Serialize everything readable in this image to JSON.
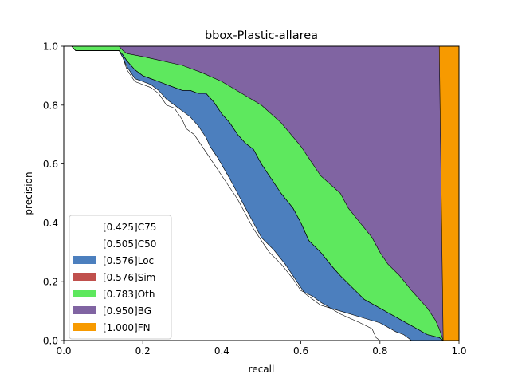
{
  "chart_data": {
    "type": "area",
    "title": "bbox-Plastic-allarea",
    "xlabel": "recall",
    "ylabel": "precision",
    "xlim": [
      0,
      1
    ],
    "ylim": [
      0,
      1
    ],
    "xticks": [
      "0.0",
      "0.2",
      "0.4",
      "0.6",
      "0.8",
      "1.0"
    ],
    "yticks": [
      "0.0",
      "0.2",
      "0.4",
      "0.6",
      "0.8",
      "1.0"
    ],
    "grid": false,
    "legend_position": "lower-left",
    "series": [
      {
        "name": "[0.425]C75",
        "color": "#ffffff",
        "x": [
          0,
          0.02,
          0.03,
          0.14,
          0.15,
          0.16,
          0.18,
          0.2,
          0.22,
          0.24,
          0.26,
          0.28,
          0.3,
          0.31,
          0.33,
          0.35,
          0.36,
          0.38,
          0.4,
          0.42,
          0.44,
          0.46,
          0.48,
          0.5,
          0.52,
          0.55,
          0.58,
          0.6,
          0.63,
          0.65,
          0.7,
          0.75,
          0.78,
          0.79,
          0.8
        ],
        "y": [
          1.0,
          1.0,
          0.985,
          0.985,
          0.96,
          0.92,
          0.88,
          0.87,
          0.86,
          0.84,
          0.8,
          0.79,
          0.75,
          0.72,
          0.7,
          0.66,
          0.64,
          0.6,
          0.56,
          0.52,
          0.48,
          0.43,
          0.38,
          0.34,
          0.3,
          0.26,
          0.21,
          0.17,
          0.15,
          0.13,
          0.09,
          0.06,
          0.04,
          0.01,
          0.0
        ]
      },
      {
        "name": "[0.505]C50",
        "color": "#ffffff",
        "x": [
          0,
          0.02,
          0.03,
          0.14,
          0.15,
          0.16,
          0.18,
          0.2,
          0.22,
          0.24,
          0.26,
          0.28,
          0.3,
          0.32,
          0.34,
          0.36,
          0.37,
          0.39,
          0.42,
          0.44,
          0.46,
          0.48,
          0.5,
          0.53,
          0.56,
          0.59,
          0.61,
          0.63,
          0.65,
          0.7,
          0.75,
          0.8,
          0.84,
          0.86,
          0.88
        ],
        "y": [
          1.0,
          1.0,
          0.985,
          0.985,
          0.96,
          0.93,
          0.89,
          0.88,
          0.87,
          0.85,
          0.82,
          0.8,
          0.78,
          0.76,
          0.73,
          0.69,
          0.66,
          0.62,
          0.55,
          0.5,
          0.45,
          0.4,
          0.35,
          0.31,
          0.26,
          0.2,
          0.16,
          0.14,
          0.12,
          0.1,
          0.08,
          0.06,
          0.03,
          0.02,
          0.0
        ]
      },
      {
        "name": "[0.576]Loc",
        "color": "#4c7fbe",
        "x": [
          0,
          0.02,
          0.03,
          0.14,
          0.15,
          0.16,
          0.18,
          0.2,
          0.22,
          0.24,
          0.26,
          0.28,
          0.3,
          0.32,
          0.34,
          0.36,
          0.38,
          0.4,
          0.42,
          0.44,
          0.46,
          0.48,
          0.5,
          0.52,
          0.55,
          0.58,
          0.6,
          0.62,
          0.65,
          0.68,
          0.7,
          0.73,
          0.76,
          0.8,
          0.84,
          0.88,
          0.92,
          0.95,
          0.96
        ],
        "y": [
          1.0,
          1.0,
          0.985,
          0.985,
          0.97,
          0.95,
          0.92,
          0.9,
          0.89,
          0.88,
          0.87,
          0.86,
          0.85,
          0.85,
          0.84,
          0.84,
          0.81,
          0.77,
          0.74,
          0.7,
          0.67,
          0.65,
          0.6,
          0.56,
          0.5,
          0.45,
          0.4,
          0.34,
          0.3,
          0.25,
          0.22,
          0.18,
          0.14,
          0.11,
          0.08,
          0.05,
          0.02,
          0.01,
          0.0
        ]
      },
      {
        "name": "[0.576]Sim",
        "color": "#c0504d",
        "x": [
          0,
          0.02,
          0.03,
          0.14,
          0.15,
          0.16,
          0.18,
          0.2,
          0.22,
          0.24,
          0.26,
          0.28,
          0.3,
          0.32,
          0.34,
          0.36,
          0.38,
          0.4,
          0.42,
          0.44,
          0.46,
          0.48,
          0.5,
          0.52,
          0.55,
          0.58,
          0.6,
          0.62,
          0.65,
          0.68,
          0.7,
          0.73,
          0.76,
          0.8,
          0.84,
          0.88,
          0.92,
          0.95,
          0.96
        ],
        "y": [
          1.0,
          1.0,
          0.985,
          0.985,
          0.97,
          0.95,
          0.92,
          0.9,
          0.89,
          0.88,
          0.87,
          0.86,
          0.85,
          0.85,
          0.84,
          0.84,
          0.81,
          0.77,
          0.74,
          0.7,
          0.67,
          0.65,
          0.6,
          0.56,
          0.5,
          0.45,
          0.4,
          0.34,
          0.3,
          0.25,
          0.22,
          0.18,
          0.14,
          0.11,
          0.08,
          0.05,
          0.02,
          0.01,
          0.0
        ]
      },
      {
        "name": "[0.783]Oth",
        "color": "#5ee85e",
        "x": [
          0,
          0.02,
          0.14,
          0.15,
          0.16,
          0.18,
          0.2,
          0.25,
          0.3,
          0.35,
          0.4,
          0.45,
          0.5,
          0.55,
          0.6,
          0.62,
          0.65,
          0.7,
          0.72,
          0.75,
          0.78,
          0.8,
          0.82,
          0.85,
          0.88,
          0.9,
          0.92,
          0.94,
          0.95,
          0.96
        ],
        "y": [
          1.0,
          1.0,
          1.0,
          0.985,
          0.975,
          0.97,
          0.965,
          0.95,
          0.935,
          0.91,
          0.88,
          0.84,
          0.8,
          0.74,
          0.66,
          0.62,
          0.56,
          0.5,
          0.45,
          0.4,
          0.35,
          0.3,
          0.26,
          0.22,
          0.17,
          0.14,
          0.11,
          0.07,
          0.04,
          0.0
        ]
      },
      {
        "name": "[0.950]BG",
        "color": "#8064a2",
        "x": [
          0,
          0.95,
          0.96
        ],
        "y": [
          1.0,
          1.0,
          0.0
        ]
      },
      {
        "name": "[1.000]FN",
        "color": "#f79a00",
        "x": [
          0,
          1.0
        ],
        "y": [
          1.0,
          1.0
        ]
      }
    ]
  }
}
